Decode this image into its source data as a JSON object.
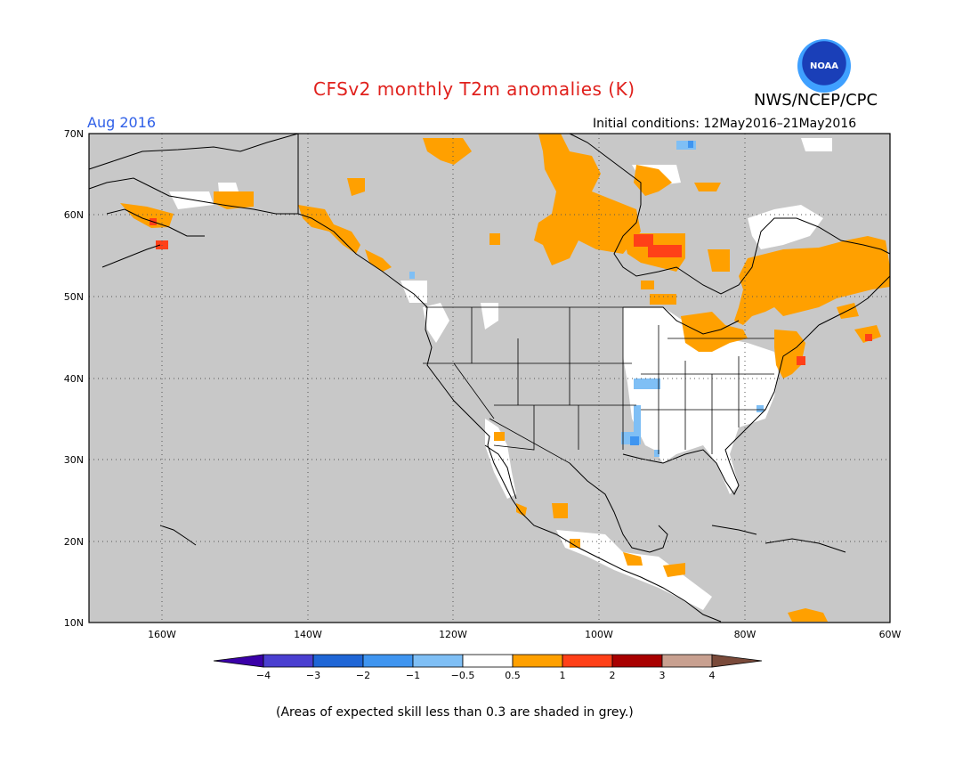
{
  "title": "CFSv2 monthly T2m anomalies (K)",
  "organization": "NWS/NCEP/CPC",
  "logo_text": "NOAA",
  "valid_month": "Aug 2016",
  "initial_conditions": "Initial conditions: 12May2016–21May2016",
  "caption": "(Areas of expected skill less than 0.3 are shaded in grey.)",
  "map": {
    "lon_range": [
      -170,
      -60
    ],
    "lat_range": [
      10,
      70
    ],
    "lon_ticks": [
      "160W",
      "140W",
      "120W",
      "100W",
      "80W",
      "60W"
    ],
    "lat_ticks": [
      "70N",
      "60N",
      "50N",
      "40N",
      "30N",
      "20N",
      "10N"
    ],
    "grey_color": "#c8c8c8"
  },
  "colorbar": {
    "labels": [
      "−4",
      "−3",
      "−2",
      "−1",
      "−0.5",
      "0.5",
      "1",
      "2",
      "3",
      "4"
    ],
    "colors": [
      "#3a00a8",
      "#4a3fd0",
      "#1f66d6",
      "#3f95f0",
      "#7fbff5",
      "#ffffff",
      "#ffa000",
      "#ff4018",
      "#a80000",
      "#c8a090",
      "#7a4a3a"
    ]
  },
  "anomaly_regions": [
    {
      "name": "northern-canada-warm",
      "category": "0.5",
      "color": "#ffa000"
    },
    {
      "name": "hudson-bay-warm",
      "category": "1",
      "color": "#ff4018"
    },
    {
      "name": "eastern-canada-warm",
      "category": "0.5",
      "color": "#ffa000"
    },
    {
      "name": "central-us-cool",
      "category": "-1",
      "color": "#7fbff5"
    },
    {
      "name": "alaska-warm",
      "category": "0.5",
      "color": "#ffa000"
    },
    {
      "name": "new-england-warm",
      "category": "1",
      "color": "#ff4018"
    }
  ]
}
